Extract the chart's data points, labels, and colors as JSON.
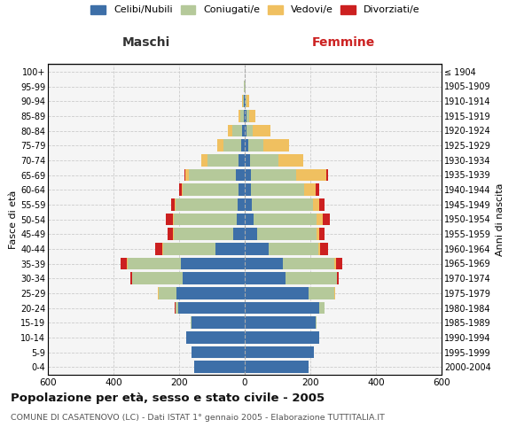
{
  "age_groups": [
    "0-4",
    "5-9",
    "10-14",
    "15-19",
    "20-24",
    "25-29",
    "30-34",
    "35-39",
    "40-44",
    "45-49",
    "50-54",
    "55-59",
    "60-64",
    "65-69",
    "70-74",
    "75-79",
    "80-84",
    "85-89",
    "90-94",
    "95-99",
    "100+"
  ],
  "birth_years": [
    "2000-2004",
    "1995-1999",
    "1990-1994",
    "1985-1989",
    "1980-1984",
    "1975-1979",
    "1970-1974",
    "1965-1969",
    "1960-1964",
    "1955-1959",
    "1950-1954",
    "1945-1949",
    "1940-1944",
    "1935-1939",
    "1930-1934",
    "1925-1929",
    "1920-1924",
    "1915-1919",
    "1910-1914",
    "1905-1909",
    "≤ 1904"
  ],
  "maschi": {
    "celibi": [
      155,
      162,
      178,
      162,
      202,
      208,
      188,
      195,
      88,
      35,
      25,
      22,
      20,
      28,
      18,
      10,
      7,
      4,
      2,
      1,
      0
    ],
    "coniugati": [
      0,
      0,
      0,
      2,
      10,
      55,
      155,
      162,
      162,
      182,
      192,
      188,
      168,
      142,
      95,
      55,
      30,
      9,
      3,
      1,
      0
    ],
    "vedovi": [
      0,
      0,
      0,
      0,
      0,
      1,
      1,
      2,
      2,
      2,
      3,
      3,
      5,
      10,
      20,
      18,
      15,
      5,
      2,
      0,
      0
    ],
    "divorziati": [
      0,
      0,
      0,
      0,
      1,
      2,
      5,
      20,
      22,
      15,
      20,
      10,
      8,
      5,
      0,
      0,
      0,
      0,
      0,
      0,
      0
    ]
  },
  "femmine": {
    "nubili": [
      195,
      210,
      228,
      215,
      228,
      195,
      125,
      115,
      72,
      38,
      28,
      22,
      20,
      20,
      15,
      10,
      5,
      5,
      2,
      1,
      0
    ],
    "coniugate": [
      0,
      0,
      0,
      5,
      15,
      78,
      155,
      158,
      152,
      182,
      192,
      185,
      162,
      138,
      88,
      48,
      18,
      8,
      3,
      1,
      0
    ],
    "vedove": [
      0,
      0,
      0,
      0,
      0,
      2,
      2,
      5,
      5,
      8,
      18,
      20,
      35,
      90,
      75,
      78,
      55,
      20,
      8,
      2,
      0
    ],
    "divorziate": [
      0,
      0,
      0,
      0,
      1,
      2,
      5,
      20,
      25,
      15,
      22,
      15,
      10,
      5,
      0,
      0,
      0,
      0,
      0,
      0,
      0
    ]
  },
  "colors": {
    "celibi_nubili": "#3d6fa8",
    "coniugati": "#b5c99a",
    "vedovi": "#f0c060",
    "divorziati": "#cc2020"
  },
  "xlim": 600,
  "title": "Popolazione per età, sesso e stato civile - 2005",
  "subtitle": "COMUNE DI CASATENOVO (LC) - Dati ISTAT 1° gennaio 2005 - Elaborazione TUTTITALIA.IT",
  "ylabel_left": "Fasce di età",
  "ylabel_right": "Anni di nascita",
  "label_maschi": "Maschi",
  "label_femmine": "Femmine",
  "legend_labels": [
    "Celibi/Nubili",
    "Coniugati/e",
    "Vedovi/e",
    "Divorziati/e"
  ],
  "bg_color": "#f5f5f5",
  "grid_color": "#cccccc"
}
